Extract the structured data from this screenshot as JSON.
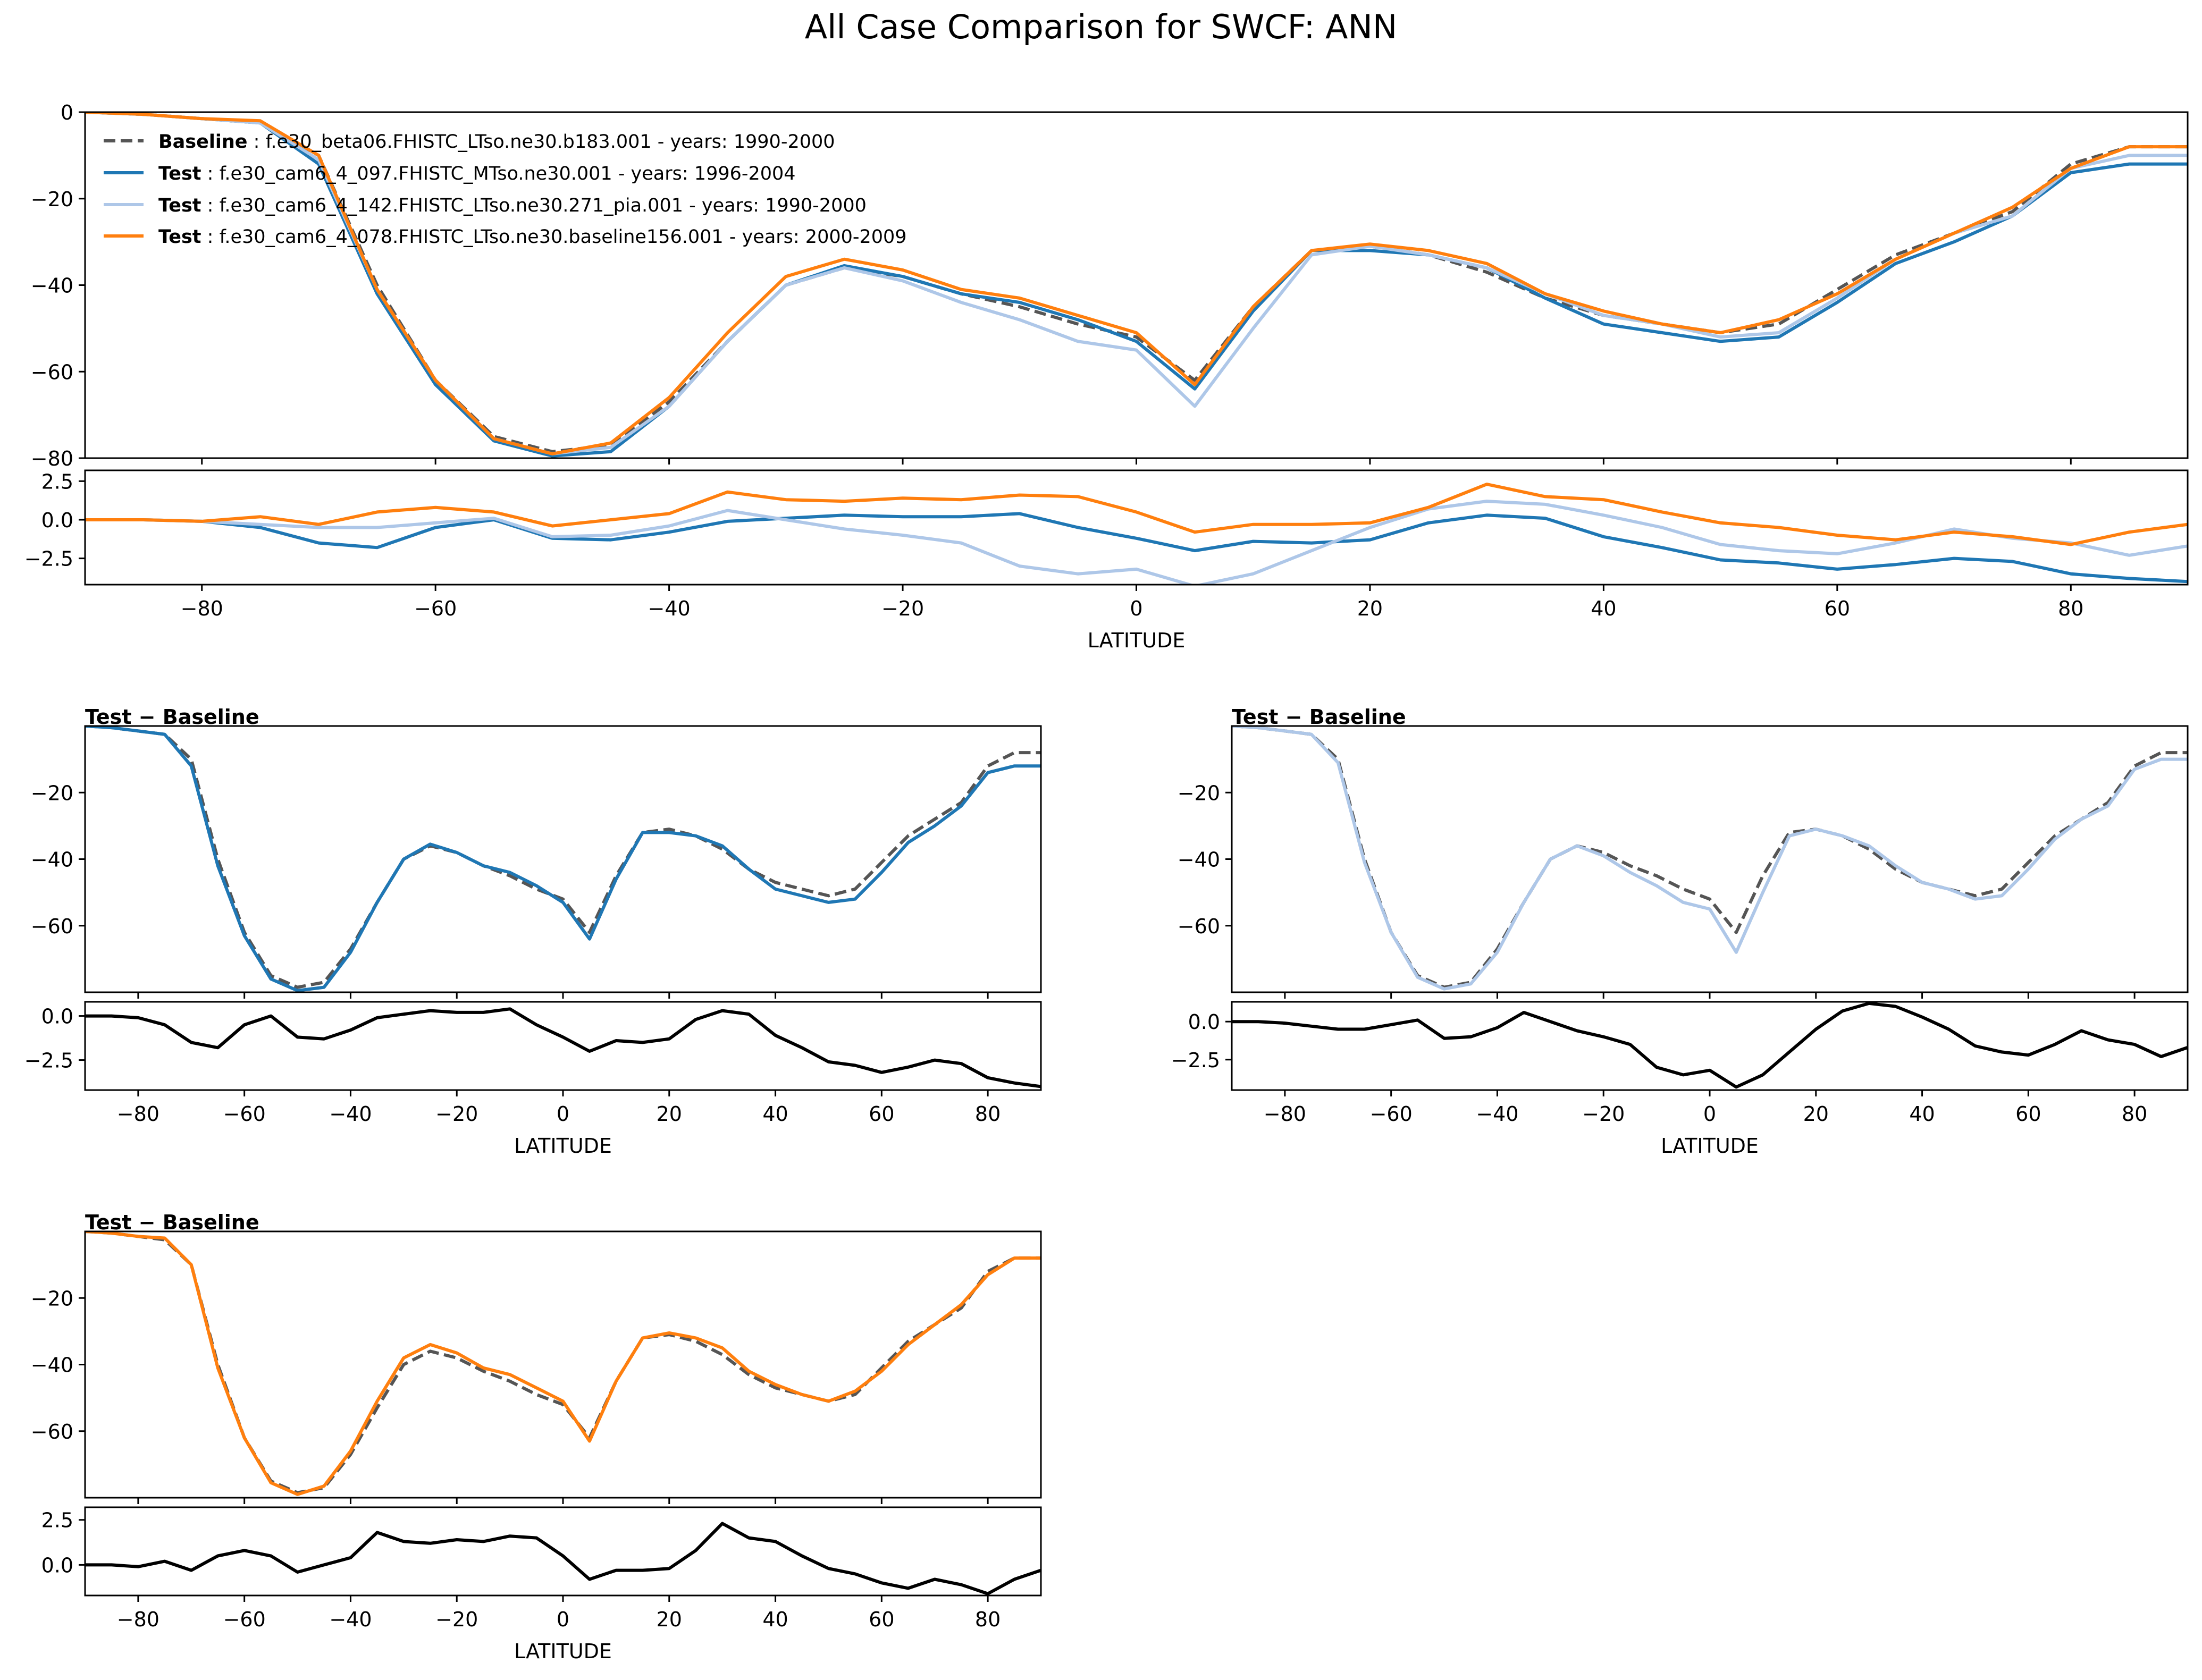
{
  "figure": {
    "title": "All Case Comparison for SWCF: ANN"
  },
  "colors": {
    "baseline": "#555555",
    "test1": "#1f77b4",
    "test2": "#aec7e8",
    "test3": "#ff7f0e",
    "diff": "#000000"
  },
  "legend": [
    {
      "label": "Baseline",
      "text": "f.e30_beta06.FHISTC_LTso.ne30.b183.001 - years: 1990-2000"
    },
    {
      "label": "Test",
      "text": "f.e30_cam6_4_097.FHISTC_MTso.ne30.001 - years: 1996-2004"
    },
    {
      "label": "Test",
      "text": "f.e30_cam6_4_142.FHISTC_LTso.ne30.271_pia.001 - years: 1990-2000"
    },
    {
      "label": "Test",
      "text": "f.e30_cam6_4_078.FHISTC_LTso.ne30.baseline156.001 - years: 2000-2009"
    }
  ],
  "chart_data": {
    "type": "line",
    "x": [
      -90,
      -85,
      -80,
      -75,
      -70,
      -65,
      -60,
      -55,
      -50,
      -45,
      -40,
      -35,
      -30,
      -25,
      -20,
      -15,
      -10,
      -5,
      0,
      5,
      10,
      15,
      20,
      25,
      30,
      35,
      40,
      45,
      50,
      55,
      60,
      65,
      70,
      75,
      80,
      85,
      90
    ],
    "xlabel": "LATITUDE",
    "xlim": [
      -90,
      90
    ],
    "xticks": [
      -80,
      -60,
      -40,
      -20,
      0,
      20,
      40,
      60,
      80
    ],
    "series": [
      {
        "name": "Baseline",
        "style": "dashed",
        "values": [
          0,
          -0.5,
          -1.5,
          -2.5,
          -10,
          -40,
          -62,
          -75,
          -78.5,
          -77,
          -67,
          -53,
          -40,
          -36,
          -38,
          -42,
          -45,
          -49,
          -52,
          -62,
          -45,
          -32,
          -31,
          -33,
          -37,
          -43,
          -47,
          -49,
          -51,
          -49,
          -41,
          -33,
          -28,
          -23,
          -12,
          -8,
          -8
        ]
      },
      {
        "name": "Test 1",
        "style": "solid",
        "values": [
          0,
          -0.5,
          -1.5,
          -2.5,
          -12,
          -42,
          -63,
          -76,
          -79.5,
          -78.5,
          -68,
          -53,
          -40,
          -35.5,
          -38,
          -42,
          -44,
          -48,
          -53,
          -64,
          -46,
          -32,
          -32,
          -33,
          -36,
          -43,
          -49,
          -51,
          -53,
          -52,
          -44,
          -35,
          -30,
          -24,
          -14,
          -12,
          -12
        ]
      },
      {
        "name": "Test 2",
        "style": "solid",
        "values": [
          0,
          -0.5,
          -1.5,
          -2.5,
          -11,
          -41,
          -62,
          -75.5,
          -79,
          -77.5,
          -68,
          -53,
          -40,
          -36,
          -39,
          -44,
          -48,
          -53,
          -55,
          -68,
          -50,
          -33,
          -31,
          -33,
          -36,
          -42,
          -47,
          -49,
          -52,
          -51,
          -43,
          -34,
          -28,
          -24,
          -13,
          -10,
          -10
        ]
      },
      {
        "name": "Test 3",
        "style": "solid",
        "values": [
          0,
          -0.5,
          -1.5,
          -2,
          -10,
          -41,
          -62,
          -75.5,
          -79,
          -76.5,
          -66,
          -51,
          -38,
          -34,
          -36.5,
          -41,
          -43,
          -47,
          -51,
          -63,
          -45,
          -32,
          -30.5,
          -32,
          -35,
          -42,
          -46,
          -49,
          -51,
          -48,
          -42,
          -34,
          -28,
          -22,
          -13,
          -8,
          -8
        ]
      }
    ],
    "diff_series": [
      {
        "name": "Test 1 - Baseline",
        "values": [
          0,
          0,
          -0.1,
          -0.5,
          -1.5,
          -1.8,
          -0.5,
          0,
          -1.2,
          -1.3,
          -0.8,
          -0.1,
          0.1,
          0.3,
          0.2,
          0.2,
          0.4,
          -0.5,
          -1.2,
          -2,
          -1.4,
          -1.5,
          -1.3,
          -0.2,
          0.3,
          0.1,
          -1.1,
          -1.8,
          -2.6,
          -2.8,
          -3.2,
          -2.9,
          -2.5,
          -2.7,
          -3.5,
          -3.8,
          -4
        ]
      },
      {
        "name": "Test 2 - Baseline",
        "values": [
          0,
          0,
          -0.1,
          -0.3,
          -0.5,
          -0.5,
          -0.2,
          0.1,
          -1.1,
          -1,
          -0.4,
          0.6,
          0,
          -0.6,
          -1,
          -1.5,
          -3,
          -3.5,
          -3.2,
          -4.3,
          -3.5,
          -2,
          -0.5,
          0.7,
          1.2,
          1,
          0.3,
          -0.5,
          -1.6,
          -2,
          -2.2,
          -1.5,
          -0.6,
          -1.2,
          -1.5,
          -2.3,
          -1.7
        ]
      },
      {
        "name": "Test 3 - Baseline",
        "values": [
          0,
          0,
          -0.1,
          0.2,
          -0.3,
          0.5,
          0.8,
          0.5,
          -0.4,
          0,
          0.4,
          1.8,
          1.3,
          1.2,
          1.4,
          1.3,
          1.6,
          1.5,
          0.5,
          -0.8,
          -0.3,
          -0.3,
          -0.2,
          0.8,
          2.3,
          1.5,
          1.3,
          0.5,
          -0.2,
          -0.5,
          -1,
          -1.3,
          -0.8,
          -1.1,
          -1.6,
          -0.8,
          -0.3
        ]
      }
    ],
    "main_panel": {
      "ylim": [
        -80,
        0
      ],
      "yticks": [
        0,
        -20,
        -40,
        -60,
        -80
      ],
      "diff_ylim": [
        -4.2,
        3.2
      ],
      "diff_yticks": [
        2.5,
        0.0,
        -2.5
      ]
    },
    "sub_panels": [
      {
        "series_index": 1,
        "annotation": "Test − Baseline",
        "ylim": [
          -80,
          0
        ],
        "yticks": [
          -20,
          -40,
          -60
        ],
        "diff_ylim": [
          -4.2,
          0.8
        ],
        "diff_yticks": [
          0.0,
          -2.5
        ]
      },
      {
        "series_index": 2,
        "annotation": "Test − Baseline",
        "ylim": [
          -80,
          0
        ],
        "yticks": [
          -20,
          -40,
          -60
        ],
        "diff_ylim": [
          -4.5,
          1.3
        ],
        "diff_yticks": [
          0.0,
          -2.5
        ]
      },
      {
        "series_index": 3,
        "annotation": "Test − Baseline",
        "ylim": [
          -80,
          0
        ],
        "yticks": [
          -20,
          -40,
          -60
        ],
        "diff_ylim": [
          -1.7,
          3.2
        ],
        "diff_yticks": [
          2.5,
          0.0
        ]
      }
    ],
    "tick_labels": {
      "x": [
        "−80",
        "−60",
        "−40",
        "−20",
        "0",
        "20",
        "40",
        "60",
        "80"
      ],
      "y_main": [
        "0",
        "−20",
        "−40",
        "−60",
        "−80"
      ],
      "y_sub": [
        "−20",
        "−40",
        "−60"
      ],
      "diff_main": [
        "2.5",
        "0.0",
        "−2.5"
      ],
      "diff_sub12": [
        "0.0",
        "−2.5"
      ],
      "diff_sub3": [
        "2.5",
        "0.0"
      ]
    }
  }
}
